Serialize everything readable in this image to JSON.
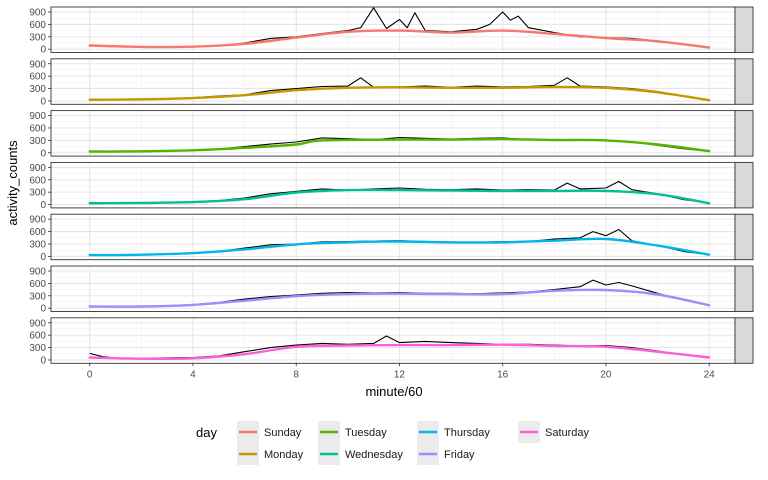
{
  "chart_data": {
    "type": "line",
    "xlabel": "minute/60",
    "ylabel": "activity_counts",
    "xlim": [
      -1.5,
      25
    ],
    "ylim": [
      -80,
      1020
    ],
    "x_ticks": [
      0,
      4,
      8,
      12,
      16,
      20,
      24
    ],
    "y_ticks": [
      0,
      300,
      600,
      900
    ],
    "grid": true,
    "legend": {
      "position": "bottom",
      "title": "day",
      "entries": [
        "Sunday",
        "Monday",
        "Tuesday",
        "Wednesday",
        "Thursday",
        "Friday",
        "Saturday"
      ]
    },
    "facets": [
      {
        "day": "Sunday",
        "color": "#F8766D",
        "smooth": [
          [
            0,
            90
          ],
          [
            2,
            55
          ],
          [
            4,
            60
          ],
          [
            6,
            130
          ],
          [
            8,
            280
          ],
          [
            10,
            420
          ],
          [
            12,
            450
          ],
          [
            14,
            400
          ],
          [
            16,
            450
          ],
          [
            18,
            370
          ],
          [
            20,
            270
          ],
          [
            22,
            190
          ],
          [
            24,
            40
          ]
        ],
        "raw": [
          [
            0,
            100
          ],
          [
            1,
            70
          ],
          [
            2,
            60
          ],
          [
            3,
            50
          ],
          [
            4,
            60
          ],
          [
            5,
            80
          ],
          [
            6,
            150
          ],
          [
            7,
            260
          ],
          [
            8,
            300
          ],
          [
            9,
            380
          ],
          [
            10,
            450
          ],
          [
            10.5,
            520
          ],
          [
            11,
            1000
          ],
          [
            11.5,
            500
          ],
          [
            12,
            720
          ],
          [
            12.3,
            520
          ],
          [
            12.6,
            880
          ],
          [
            13,
            450
          ],
          [
            14,
            420
          ],
          [
            15,
            480
          ],
          [
            15.5,
            600
          ],
          [
            16,
            900
          ],
          [
            16.3,
            700
          ],
          [
            16.6,
            800
          ],
          [
            17,
            520
          ],
          [
            18,
            400
          ],
          [
            19,
            300
          ],
          [
            20,
            280
          ],
          [
            21,
            260
          ],
          [
            22,
            200
          ],
          [
            23,
            120
          ],
          [
            24,
            30
          ]
        ]
      },
      {
        "day": "Monday",
        "color": "#C49A00",
        "smooth": [
          [
            0,
            30
          ],
          [
            2,
            40
          ],
          [
            4,
            70
          ],
          [
            6,
            140
          ],
          [
            8,
            260
          ],
          [
            10,
            320
          ],
          [
            12,
            330
          ],
          [
            14,
            320
          ],
          [
            16,
            320
          ],
          [
            18,
            340
          ],
          [
            20,
            320
          ],
          [
            22,
            210
          ],
          [
            24,
            20
          ]
        ],
        "raw": [
          [
            0,
            40
          ],
          [
            1,
            40
          ],
          [
            2,
            50
          ],
          [
            3,
            60
          ],
          [
            4,
            80
          ],
          [
            5,
            120
          ],
          [
            6,
            150
          ],
          [
            7,
            250
          ],
          [
            8,
            300
          ],
          [
            9,
            350
          ],
          [
            10,
            360
          ],
          [
            10.5,
            560
          ],
          [
            11,
            330
          ],
          [
            12,
            340
          ],
          [
            13,
            360
          ],
          [
            14,
            330
          ],
          [
            15,
            360
          ],
          [
            16,
            340
          ],
          [
            17,
            350
          ],
          [
            18,
            380
          ],
          [
            18.5,
            560
          ],
          [
            19,
            360
          ],
          [
            20,
            340
          ],
          [
            21,
            300
          ],
          [
            22,
            230
          ],
          [
            23,
            120
          ],
          [
            24,
            20
          ]
        ]
      },
      {
        "day": "Tuesday",
        "color": "#53B400",
        "smooth": [
          [
            0,
            30
          ],
          [
            2,
            35
          ],
          [
            4,
            60
          ],
          [
            6,
            120
          ],
          [
            8,
            200
          ],
          [
            9,
            300
          ],
          [
            12,
            320
          ],
          [
            14,
            320
          ],
          [
            16,
            330
          ],
          [
            18,
            310
          ],
          [
            20,
            300
          ],
          [
            22,
            200
          ],
          [
            24,
            40
          ]
        ],
        "raw": [
          [
            0,
            40
          ],
          [
            1,
            30
          ],
          [
            2,
            40
          ],
          [
            3,
            50
          ],
          [
            4,
            60
          ],
          [
            5,
            90
          ],
          [
            6,
            150
          ],
          [
            7,
            210
          ],
          [
            8,
            260
          ],
          [
            9,
            360
          ],
          [
            10,
            340
          ],
          [
            11,
            320
          ],
          [
            12,
            370
          ],
          [
            13,
            350
          ],
          [
            14,
            330
          ],
          [
            15,
            350
          ],
          [
            16,
            360
          ],
          [
            17,
            320
          ],
          [
            18,
            300
          ],
          [
            19,
            320
          ],
          [
            20,
            290
          ],
          [
            21,
            260
          ],
          [
            22,
            180
          ],
          [
            23,
            100
          ],
          [
            24,
            30
          ]
        ]
      },
      {
        "day": "Wednesday",
        "color": "#00C094",
        "smooth": [
          [
            0,
            30
          ],
          [
            2,
            40
          ],
          [
            4,
            60
          ],
          [
            6,
            130
          ],
          [
            8,
            290
          ],
          [
            10,
            350
          ],
          [
            12,
            350
          ],
          [
            14,
            340
          ],
          [
            16,
            330
          ],
          [
            18,
            330
          ],
          [
            20,
            330
          ],
          [
            22,
            250
          ],
          [
            24,
            30
          ]
        ],
        "raw": [
          [
            0,
            50
          ],
          [
            1,
            40
          ],
          [
            2,
            40
          ],
          [
            3,
            50
          ],
          [
            4,
            70
          ],
          [
            5,
            100
          ],
          [
            6,
            160
          ],
          [
            7,
            260
          ],
          [
            8,
            320
          ],
          [
            9,
            380
          ],
          [
            10,
            350
          ],
          [
            11,
            380
          ],
          [
            12,
            400
          ],
          [
            13,
            370
          ],
          [
            14,
            360
          ],
          [
            15,
            380
          ],
          [
            16,
            350
          ],
          [
            17,
            360
          ],
          [
            18,
            350
          ],
          [
            18.5,
            520
          ],
          [
            19,
            380
          ],
          [
            20,
            400
          ],
          [
            20.5,
            560
          ],
          [
            21,
            360
          ],
          [
            22,
            260
          ],
          [
            23,
            120
          ],
          [
            24,
            40
          ]
        ]
      },
      {
        "day": "Thursday",
        "color": "#00B6EB",
        "smooth": [
          [
            0,
            30
          ],
          [
            2,
            40
          ],
          [
            4,
            80
          ],
          [
            6,
            170
          ],
          [
            8,
            290
          ],
          [
            10,
            340
          ],
          [
            12,
            360
          ],
          [
            14,
            340
          ],
          [
            16,
            340
          ],
          [
            18,
            380
          ],
          [
            20,
            420
          ],
          [
            22,
            260
          ],
          [
            24,
            40
          ]
        ],
        "raw": [
          [
            0,
            40
          ],
          [
            1,
            30
          ],
          [
            2,
            40
          ],
          [
            3,
            60
          ],
          [
            4,
            80
          ],
          [
            5,
            120
          ],
          [
            6,
            200
          ],
          [
            7,
            280
          ],
          [
            8,
            300
          ],
          [
            9,
            350
          ],
          [
            10,
            360
          ],
          [
            11,
            370
          ],
          [
            12,
            380
          ],
          [
            13,
            360
          ],
          [
            14,
            350
          ],
          [
            15,
            340
          ],
          [
            16,
            360
          ],
          [
            17,
            360
          ],
          [
            18,
            420
          ],
          [
            19,
            450
          ],
          [
            19.5,
            600
          ],
          [
            20,
            500
          ],
          [
            20.5,
            650
          ],
          [
            21,
            380
          ],
          [
            22,
            260
          ],
          [
            23,
            120
          ],
          [
            24,
            40
          ]
        ]
      },
      {
        "day": "Friday",
        "color": "#A58AFF",
        "smooth": [
          [
            0,
            40
          ],
          [
            2,
            40
          ],
          [
            4,
            80
          ],
          [
            6,
            180
          ],
          [
            8,
            290
          ],
          [
            10,
            340
          ],
          [
            12,
            350
          ],
          [
            14,
            340
          ],
          [
            16,
            340
          ],
          [
            18,
            420
          ],
          [
            20,
            440
          ],
          [
            22,
            330
          ],
          [
            24,
            70
          ]
        ],
        "raw": [
          [
            0,
            50
          ],
          [
            1,
            40
          ],
          [
            2,
            40
          ],
          [
            3,
            60
          ],
          [
            4,
            90
          ],
          [
            5,
            140
          ],
          [
            6,
            220
          ],
          [
            7,
            280
          ],
          [
            8,
            320
          ],
          [
            9,
            360
          ],
          [
            10,
            380
          ],
          [
            11,
            370
          ],
          [
            12,
            380
          ],
          [
            13,
            360
          ],
          [
            14,
            360
          ],
          [
            15,
            350
          ],
          [
            16,
            370
          ],
          [
            17,
            390
          ],
          [
            18,
            450
          ],
          [
            19,
            520
          ],
          [
            19.5,
            680
          ],
          [
            20,
            560
          ],
          [
            20.5,
            620
          ],
          [
            21,
            540
          ],
          [
            22,
            360
          ],
          [
            23,
            200
          ],
          [
            24,
            80
          ]
        ]
      },
      {
        "day": "Saturday",
        "color": "#FB61D7",
        "smooth": [
          [
            0,
            60
          ],
          [
            2,
            30
          ],
          [
            4,
            40
          ],
          [
            6,
            140
          ],
          [
            8,
            320
          ],
          [
            10,
            350
          ],
          [
            12,
            360
          ],
          [
            14,
            360
          ],
          [
            16,
            370
          ],
          [
            18,
            340
          ],
          [
            20,
            320
          ],
          [
            22,
            200
          ],
          [
            24,
            60
          ]
        ],
        "raw": [
          [
            0,
            160
          ],
          [
            0.5,
            80
          ],
          [
            1,
            50
          ],
          [
            2,
            40
          ],
          [
            3,
            50
          ],
          [
            4,
            60
          ],
          [
            5,
            100
          ],
          [
            6,
            200
          ],
          [
            7,
            300
          ],
          [
            8,
            360
          ],
          [
            9,
            400
          ],
          [
            10,
            380
          ],
          [
            11,
            400
          ],
          [
            11.5,
            580
          ],
          [
            12,
            420
          ],
          [
            13,
            450
          ],
          [
            14,
            420
          ],
          [
            15,
            400
          ],
          [
            16,
            380
          ],
          [
            17,
            380
          ],
          [
            18,
            360
          ],
          [
            19,
            340
          ],
          [
            20,
            350
          ],
          [
            21,
            300
          ],
          [
            22,
            220
          ],
          [
            23,
            120
          ],
          [
            24,
            70
          ]
        ]
      }
    ]
  }
}
